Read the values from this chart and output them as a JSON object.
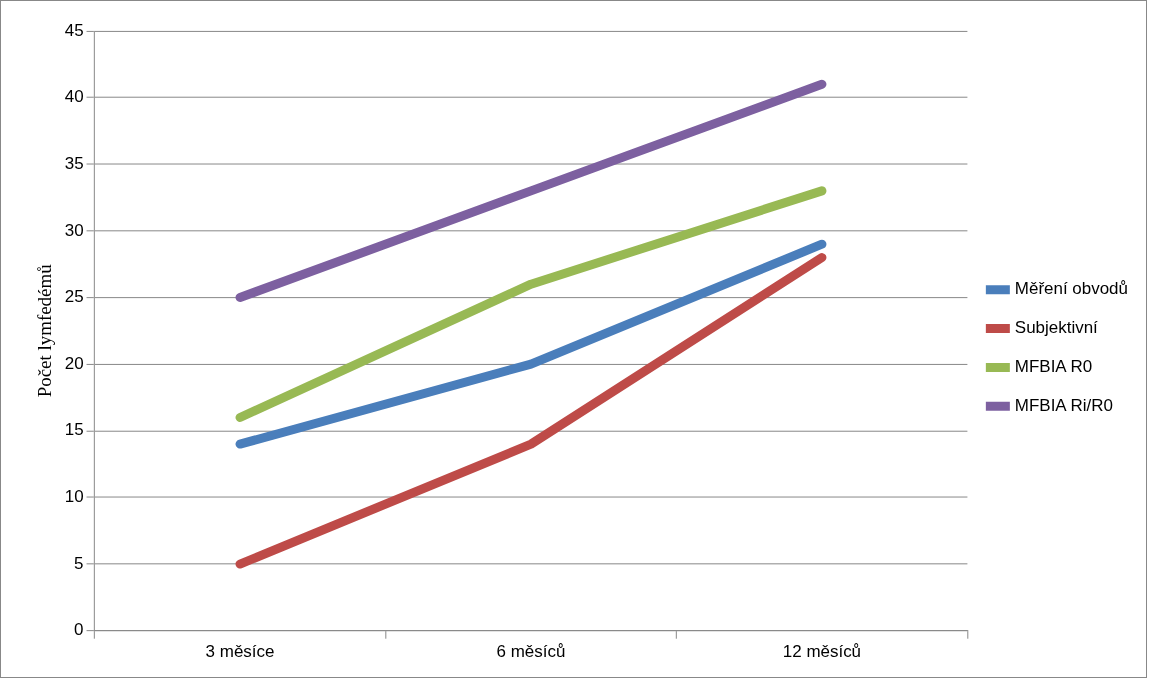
{
  "chart_data": {
    "type": "line",
    "ylabel": "Počet lymfedémů",
    "categories": [
      "3 měsíce",
      "6 měsíců",
      "12 měsíců"
    ],
    "series": [
      {
        "name": "Měření obvodů",
        "color": "#4a7ebb",
        "values": [
          14,
          20,
          29
        ]
      },
      {
        "name": "Subjektivní",
        "color": "#be4b48",
        "values": [
          5,
          14,
          28
        ]
      },
      {
        "name": "MFBIA R0",
        "color": "#98b954",
        "values": [
          16,
          26,
          33
        ]
      },
      {
        "name": "MFBIA Ri/R0",
        "color": "#7d60a0",
        "values": [
          25,
          33,
          41
        ]
      }
    ],
    "ylim": [
      0,
      45
    ],
    "yticks": [
      0,
      5,
      10,
      15,
      20,
      25,
      30,
      35,
      40,
      45
    ],
    "grid": "y",
    "legend": "right",
    "marker": "none",
    "line_style": "solid"
  }
}
